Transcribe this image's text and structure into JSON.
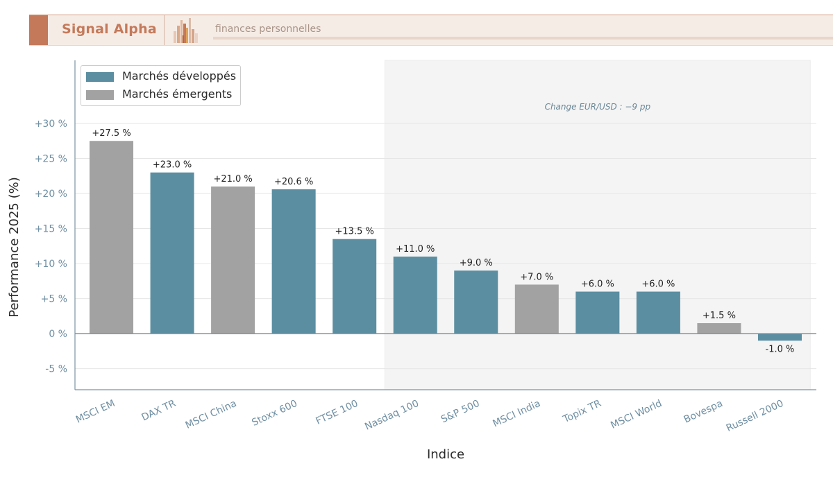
{
  "header": {
    "brand": "Signal Alpha",
    "tagline": "finances personnelles",
    "logo_icon": "bar-chart-logo"
  },
  "colors": {
    "developed": "#5b8ea1",
    "emerging": "#a2a2a2",
    "brand": "#c47a5a",
    "axis": "#7d93a1",
    "tick_text": "#6f8fa3",
    "shade": "#f4f4f4"
  },
  "chart_data": {
    "type": "bar",
    "xlabel": "Indice",
    "ylabel": "Performance 2025 (%)",
    "ylim": [
      -8,
      39
    ],
    "yticks": [
      -5,
      0,
      5,
      10,
      15,
      20,
      25,
      30
    ],
    "ytick_labels": [
      "-5 %",
      "0 %",
      "+5 %",
      "+10 %",
      "+15 %",
      "+20 %",
      "+25 %",
      "+30 %"
    ],
    "grid": "horizontal",
    "legend_position": "top-left",
    "categories": [
      "MSCI EM",
      "DAX TR",
      "MSCI China",
      "Stoxx 600",
      "FTSE 100",
      "Nasdaq 100",
      "S&P 500",
      "MSCI India",
      "Topix TR",
      "MSCI World",
      "Bovespa",
      "Russell 2000"
    ],
    "values": [
      27.5,
      23.0,
      21.0,
      20.6,
      13.5,
      11.0,
      9.0,
      7.0,
      6.0,
      6.0,
      1.5,
      -1.0
    ],
    "value_labels": [
      "+27.5 %",
      "+23.0 %",
      "+21.0 %",
      "+20.6 %",
      "+13.5 %",
      "+11.0 %",
      "+9.0 %",
      "+7.0 %",
      "+6.0 %",
      "+6.0 %",
      "+1.5 %",
      "-1.0 %"
    ],
    "groups": [
      "Marchés émergents",
      "Marchés développés",
      "Marchés émergents",
      "Marchés développés",
      "Marchés développés",
      "Marchés développés",
      "Marchés développés",
      "Marchés émergents",
      "Marchés développés",
      "Marchés développés",
      "Marchés émergents",
      "Marchés développés"
    ],
    "series": [
      {
        "name": "Marchés développés",
        "color": "#5b8ea1"
      },
      {
        "name": "Marchés émergents",
        "color": "#a2a2a2"
      }
    ],
    "shaded_region": {
      "from_category": "Nasdaq 100",
      "to_category": "Russell 2000",
      "label": "Change EUR/USD : −9 pp"
    }
  }
}
